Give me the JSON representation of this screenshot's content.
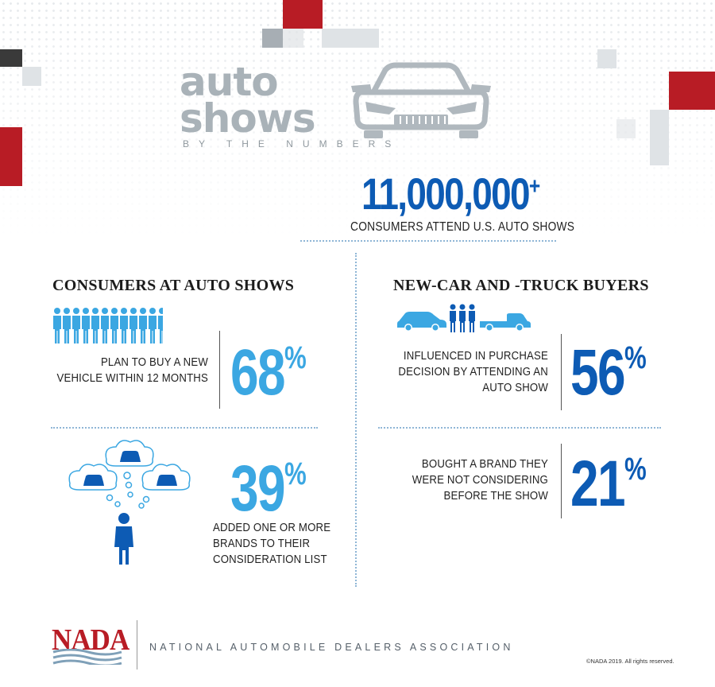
{
  "header": {
    "title_line1": "auto",
    "title_line2": "shows",
    "subtitle": "BY THE NUMBERS"
  },
  "headline_stat": {
    "value": "11,000,000",
    "suffix": "+",
    "caption": "CONSUMERS ATTEND U.S. AUTO SHOWS"
  },
  "left_section": {
    "title": "CONSUMERS AT AUTO SHOWS",
    "stats": [
      {
        "label_lines": [
          "PLAN TO BUY A NEW",
          "VEHICLE WITHIN 12 MONTHS"
        ],
        "value": "68",
        "unit": "%"
      },
      {
        "label_lines": [
          "ADDED ONE OR MORE",
          "BRANDS TO THEIR",
          "CONSIDERATION LIST"
        ],
        "value": "39",
        "unit": "%"
      }
    ]
  },
  "right_section": {
    "title": "NEW-CAR AND -TRUCK BUYERS",
    "stats": [
      {
        "label_lines": [
          "INFLUENCED IN PURCHASE",
          "DECISION BY ATTENDING AN",
          "AUTO SHOW"
        ],
        "value": "56",
        "unit": "%"
      },
      {
        "label_lines": [
          "BOUGHT A BRAND THEY",
          "WERE NOT CONSIDERING",
          "BEFORE THE SHOW"
        ],
        "value": "21",
        "unit": "%"
      }
    ]
  },
  "footer": {
    "logo_text": "NADA",
    "org_name": "NATIONAL AUTOMOBILE DEALERS ASSOCIATION",
    "copyright": "©NADA 2019. All rights reserved."
  },
  "colors": {
    "accent_red": "#b81c25",
    "accent_blue_dark": "#0d5bb4",
    "accent_blue_light": "#3ba7e2",
    "title_grey": "#a9b2b8"
  },
  "icons": [
    "car-outline-icon",
    "people-row-icon",
    "thought-cloud-car-icon",
    "person-icon",
    "car-icon",
    "pickup-truck-icon",
    "family-icon",
    "nada-wave-icon"
  ]
}
